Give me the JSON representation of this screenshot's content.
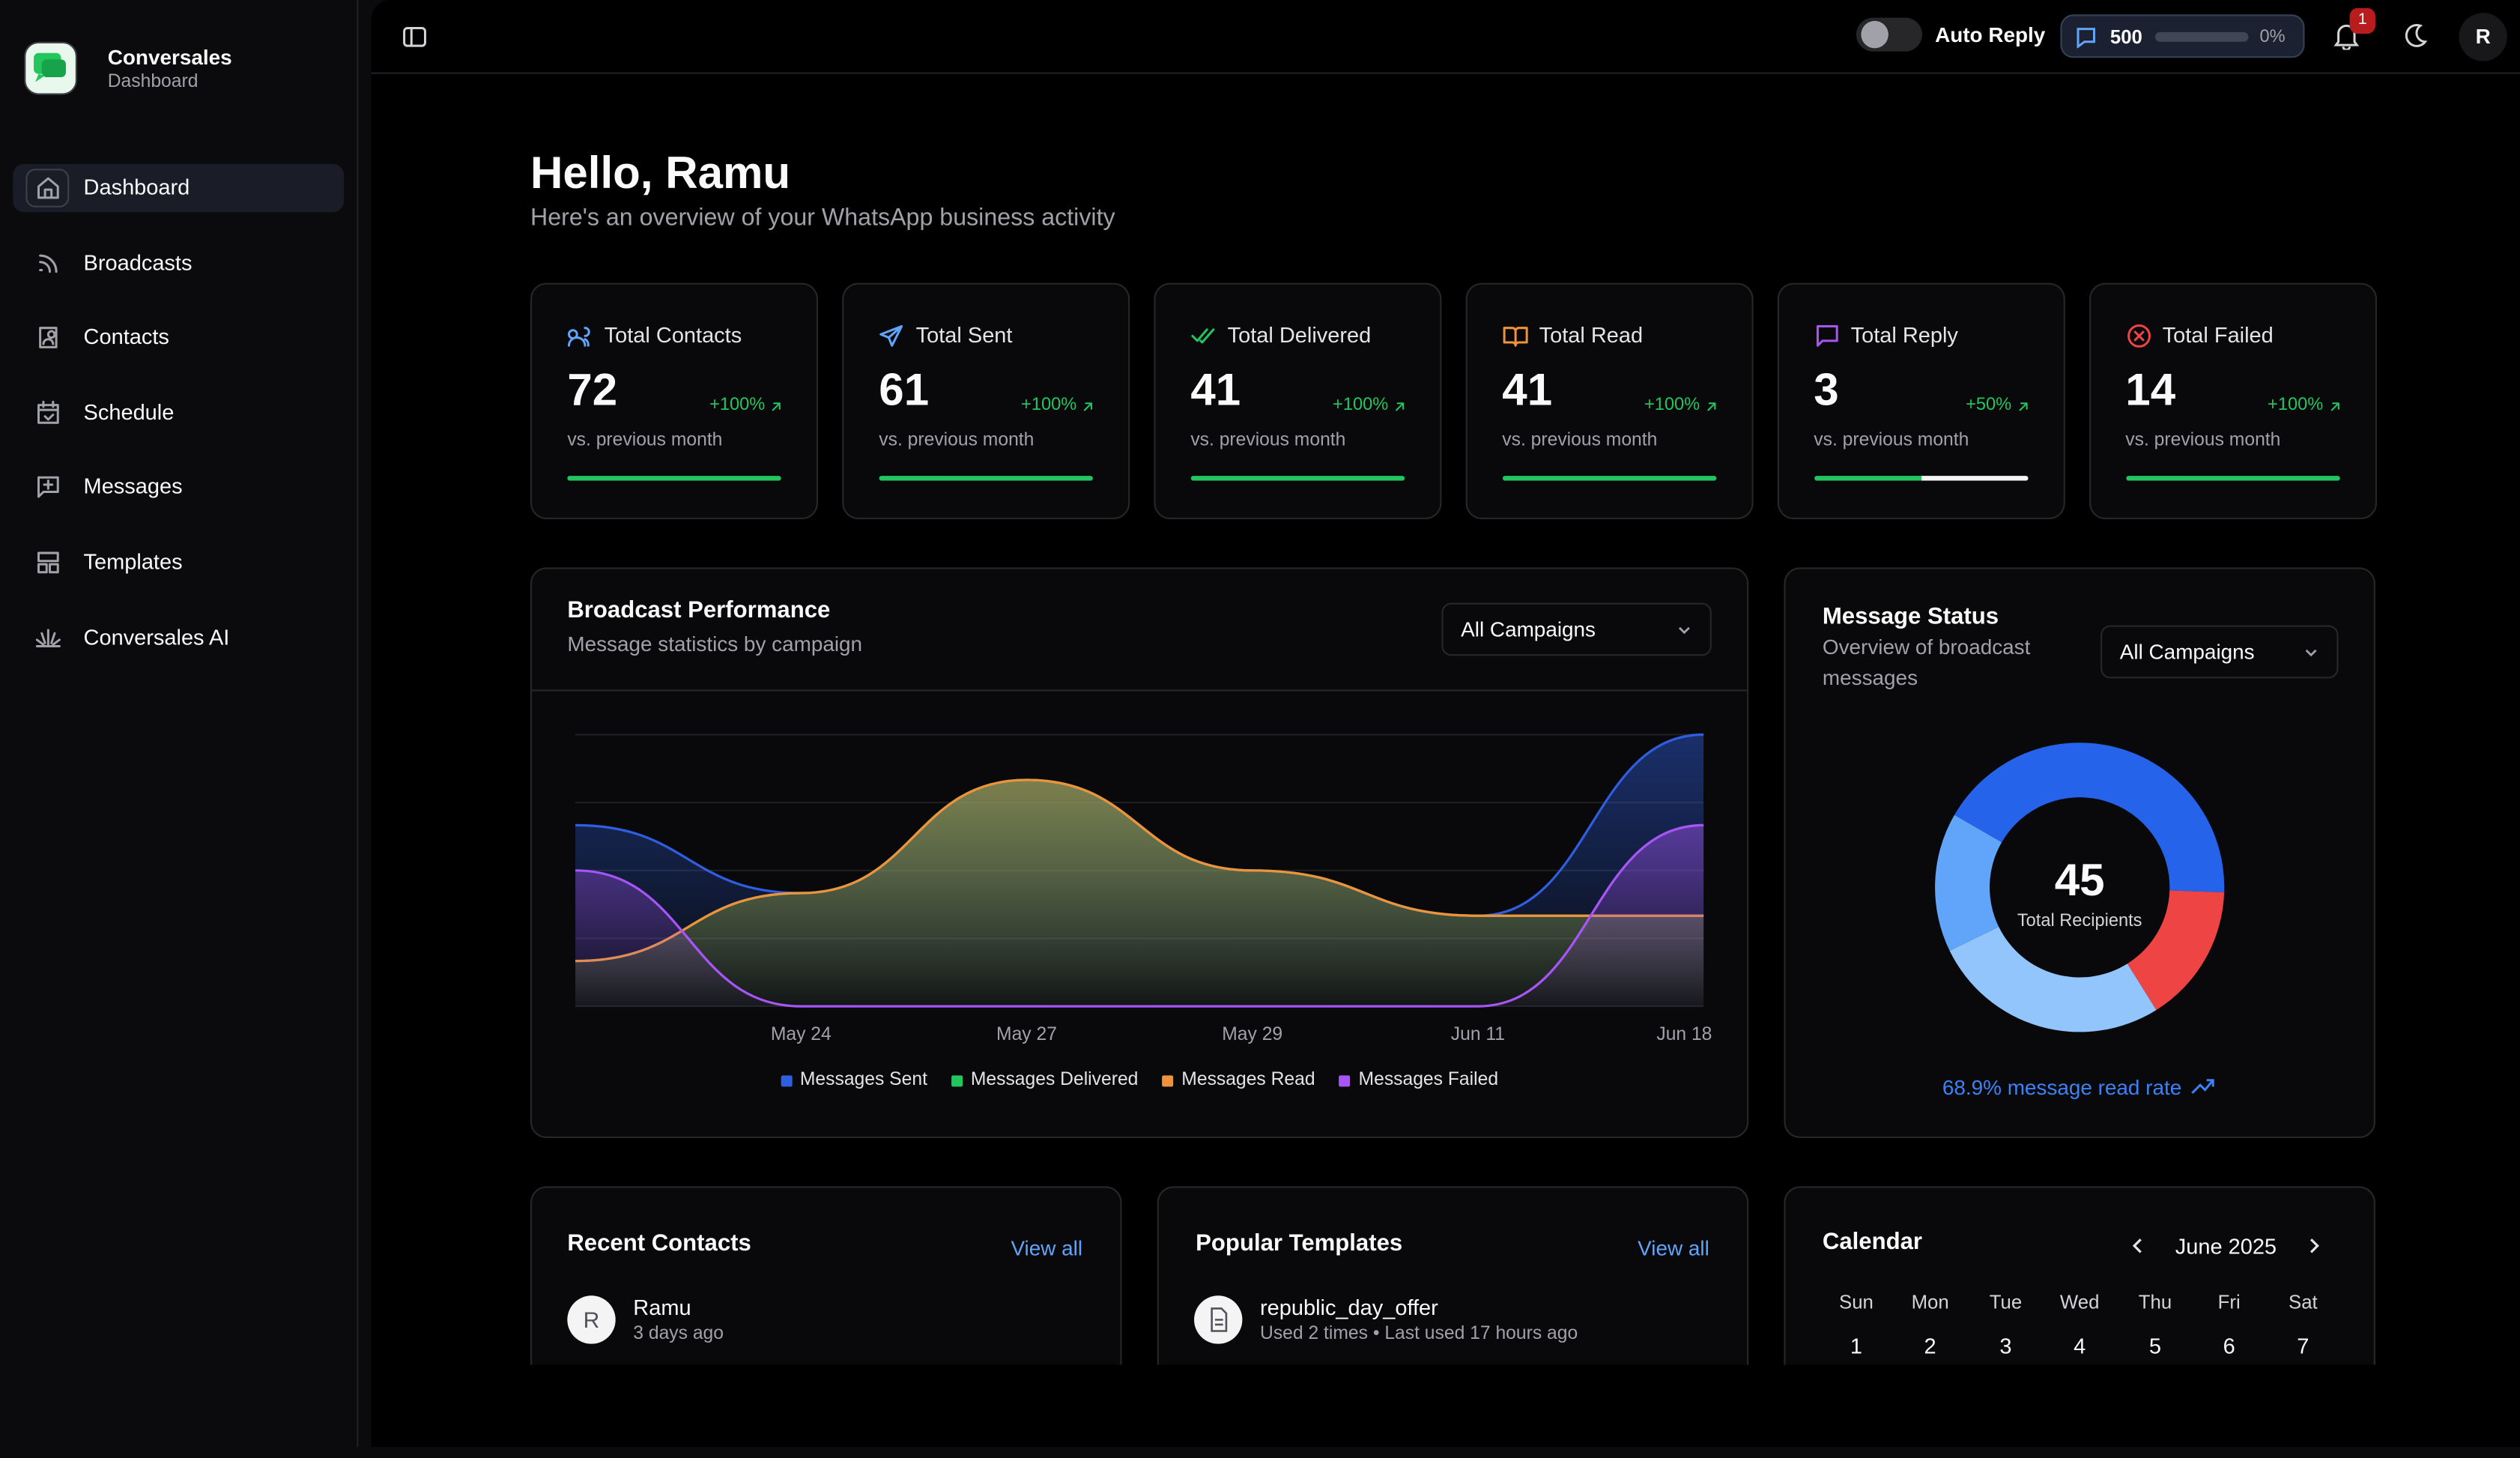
{
  "sidebar": {
    "brand": "Conversales",
    "subtitle": "Dashboard",
    "nav": [
      "Dashboard",
      "Broadcasts",
      "Contacts",
      "Schedule",
      "Messages",
      "Templates",
      "Conversales AI"
    ]
  },
  "topbar": {
    "auto_reply": "Auto Reply",
    "credits": "500",
    "credits_pct": "0%",
    "notifications": "1",
    "avatar": "R"
  },
  "greeting": {
    "title": "Hello, Ramu",
    "subtitle": "Here's an overview of your WhatsApp business activity"
  },
  "stats": [
    {
      "label": "Total Contacts",
      "value": 72,
      "change": "+100%",
      "note": "vs. previous month"
    },
    {
      "label": "Total Sent",
      "value": 61,
      "change": "+100%",
      "note": "vs. previous month"
    },
    {
      "label": "Total Delivered",
      "value": 41,
      "change": "+100%",
      "note": "vs. previous month"
    },
    {
      "label": "Total Read",
      "value": 41,
      "change": "+100%",
      "note": "vs. previous month"
    },
    {
      "label": "Total Reply",
      "value": 3,
      "change": "+50%",
      "note": "vs. previous month"
    },
    {
      "label": "Total Failed",
      "value": 14,
      "change": "+100%",
      "note": "vs. previous month"
    }
  ],
  "chart_data": [
    {
      "type": "area",
      "title": "Broadcast Performance",
      "subtitle": "Message statistics by campaign",
      "filter": "All Campaigns",
      "categories": [
        null,
        "May 24",
        "May 27",
        "May 29",
        "Jun 11",
        "Jun 18"
      ],
      "series": [
        {
          "name": "Messages Sent",
          "color": "#2f5fe0",
          "values": [
            8,
            5,
            10,
            6,
            4,
            12
          ]
        },
        {
          "name": "Messages Delivered",
          "color": "#22c55e",
          "values": [
            2,
            5,
            10,
            6,
            4,
            4
          ]
        },
        {
          "name": "Messages Read",
          "color": "#f0923a",
          "values": [
            2,
            5,
            10,
            6,
            4,
            4
          ]
        },
        {
          "name": "Messages Failed",
          "color": "#a855f7",
          "values": [
            6,
            0,
            0,
            0,
            0,
            8
          ]
        }
      ],
      "ylim": [
        0,
        12
      ],
      "yticks": [
        0,
        3,
        6,
        9,
        12
      ],
      "grid": true
    },
    {
      "type": "donut",
      "title": "Message Status",
      "subtitle": "Overview of broadcast messages",
      "filter": "All Campaigns",
      "values": [
        19,
        7,
        12,
        7
      ],
      "colors": [
        "#2563eb",
        "#ef4444",
        "#93c5fd",
        "#60a5fa"
      ],
      "total": "45",
      "total_label": "Total Recipients",
      "footer": "68.9% message read rate"
    }
  ],
  "recent_contacts": {
    "title": "Recent Contacts",
    "view_all": "View all",
    "items": [
      {
        "initial": "R",
        "name": "Ramu",
        "time": "3 days ago"
      }
    ]
  },
  "popular_templates": {
    "title": "Popular Templates",
    "view_all": "View all",
    "items": [
      {
        "name": "republic_day_offer",
        "meta": "Used 2 times • Last used 17 hours ago"
      }
    ]
  },
  "calendar": {
    "title": "Calendar",
    "month": "June 2025",
    "weekdays": [
      "Sun",
      "Mon",
      "Tue",
      "Wed",
      "Thu",
      "Fri",
      "Sat"
    ],
    "days": [
      "1",
      "2",
      "3",
      "4",
      "5",
      "6",
      "7"
    ]
  }
}
